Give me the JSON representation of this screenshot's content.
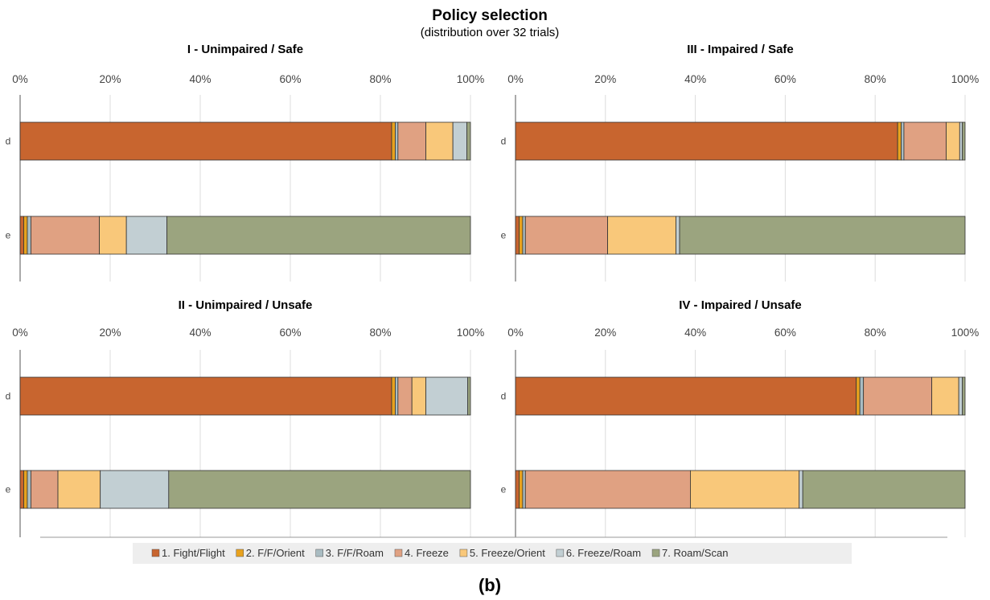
{
  "figure": {
    "title": "Policy selection",
    "subtitle": "(distribution over 32 trials)",
    "caption": "(b)"
  },
  "colors": {
    "1. Fight/Flight": "#c8652f",
    "2. F/F/Orient": "#e8a21e",
    "3. F/F/Roam": "#a9bcc2",
    "4. Freeze": "#e0a182",
    "5. Freeze/Orient": "#f9c87a",
    "6. Freeze/Roam": "#c2cfd3",
    "7. Roam/Scan": "#9ba47f"
  },
  "legend": [
    "1. Fight/Flight",
    "2. F/F/Orient",
    "3. F/F/Roam",
    "4. Freeze",
    "5. Freeze/Orient",
    "6. Freeze/Roam",
    "7. Roam/Scan"
  ],
  "chart_data": [
    {
      "type": "bar",
      "orientation": "horizontal",
      "stacked": true,
      "title": "I - Unimpaired / Safe",
      "categories": [
        "d",
        "e"
      ],
      "xlim": [
        0,
        100
      ],
      "xticks": [
        "0%",
        "20%",
        "40%",
        "60%",
        "80%",
        "100%"
      ],
      "series": [
        {
          "name": "1. Fight/Flight",
          "values": [
            82.5,
            0.8
          ]
        },
        {
          "name": "2. F/F/Orient",
          "values": [
            0.8,
            0.8
          ]
        },
        {
          "name": "3. F/F/Roam",
          "values": [
            0.6,
            0.8
          ]
        },
        {
          "name": "4. Freeze",
          "values": [
            6.2,
            15.2
          ]
        },
        {
          "name": "5. Freeze/Orient",
          "values": [
            6.0,
            6.0
          ]
        },
        {
          "name": "6. Freeze/Roam",
          "values": [
            3.1,
            9.0
          ]
        },
        {
          "name": "7. Roam/Scan",
          "values": [
            0.8,
            67.4
          ]
        }
      ]
    },
    {
      "type": "bar",
      "orientation": "horizontal",
      "stacked": true,
      "title": "III - Impaired / Safe",
      "categories": [
        "d",
        "e"
      ],
      "xlim": [
        0,
        100
      ],
      "xticks": [
        "0%",
        "20%",
        "40%",
        "60%",
        "80%",
        "100%"
      ],
      "series": [
        {
          "name": "1. Fight/Flight",
          "values": [
            85.0,
            0.8
          ]
        },
        {
          "name": "2. F/F/Orient",
          "values": [
            0.8,
            0.8
          ]
        },
        {
          "name": "3. F/F/Roam",
          "values": [
            0.6,
            0.6
          ]
        },
        {
          "name": "4. Freeze",
          "values": [
            9.4,
            18.3
          ]
        },
        {
          "name": "5. Freeze/Orient",
          "values": [
            3.0,
            15.2
          ]
        },
        {
          "name": "6. Freeze/Roam",
          "values": [
            0.6,
            0.8
          ]
        },
        {
          "name": "7. Roam/Scan",
          "values": [
            0.6,
            63.5
          ]
        }
      ]
    },
    {
      "type": "bar",
      "orientation": "horizontal",
      "stacked": true,
      "title": "II - Unimpaired / Unsafe",
      "categories": [
        "d",
        "e"
      ],
      "xlim": [
        0,
        100
      ],
      "xticks": [
        "0%",
        "20%",
        "40%",
        "60%",
        "80%",
        "100%"
      ],
      "series": [
        {
          "name": "1. Fight/Flight",
          "values": [
            82.5,
            0.8
          ]
        },
        {
          "name": "2. F/F/Orient",
          "values": [
            0.8,
            0.8
          ]
        },
        {
          "name": "3. F/F/Roam",
          "values": [
            0.6,
            0.8
          ]
        },
        {
          "name": "4. Freeze",
          "values": [
            3.1,
            6.0
          ]
        },
        {
          "name": "5. Freeze/Orient",
          "values": [
            3.1,
            9.4
          ]
        },
        {
          "name": "6. Freeze/Roam",
          "values": [
            9.3,
            15.2
          ]
        },
        {
          "name": "7. Roam/Scan",
          "values": [
            0.6,
            67.0
          ]
        }
      ]
    },
    {
      "type": "bar",
      "orientation": "horizontal",
      "stacked": true,
      "title": "IV - Impaired / Unsafe",
      "categories": [
        "d",
        "e"
      ],
      "xlim": [
        0,
        100
      ],
      "xticks": [
        "0%",
        "20%",
        "40%",
        "60%",
        "80%",
        "100%"
      ],
      "series": [
        {
          "name": "1. Fight/Flight",
          "values": [
            75.8,
            0.8
          ]
        },
        {
          "name": "2. F/F/Orient",
          "values": [
            0.8,
            0.8
          ]
        },
        {
          "name": "3. F/F/Roam",
          "values": [
            0.8,
            0.6
          ]
        },
        {
          "name": "4. Freeze",
          "values": [
            15.2,
            36.7
          ]
        },
        {
          "name": "5. Freeze/Orient",
          "values": [
            6.0,
            24.2
          ]
        },
        {
          "name": "6. Freeze/Roam",
          "values": [
            0.8,
            0.8
          ]
        },
        {
          "name": "7. Roam/Scan",
          "values": [
            0.6,
            36.1
          ]
        }
      ]
    }
  ]
}
